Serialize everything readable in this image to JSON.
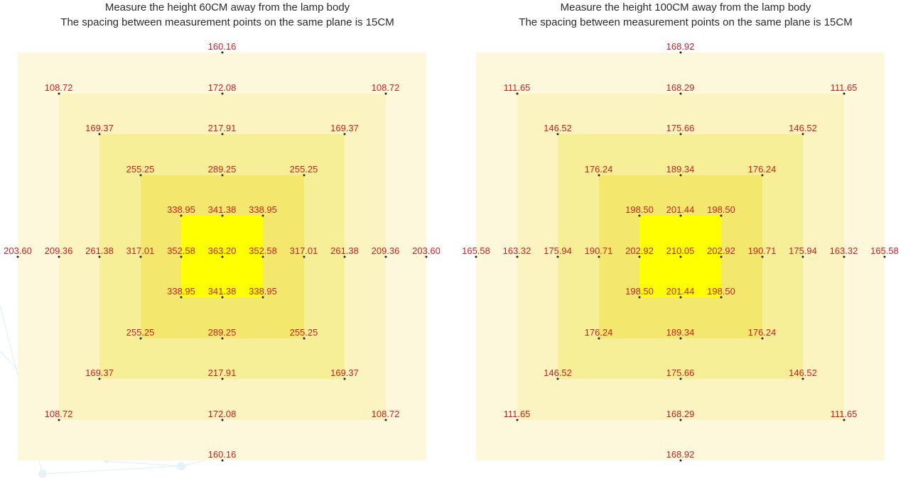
{
  "colors": {
    "rings": [
      "#fdf8dc",
      "#fbf3c0",
      "#f7ee98",
      "#f3e86d",
      "#ffff00"
    ],
    "value_text": "#cc1f1f",
    "title_text": "#2b2b2b"
  },
  "panels": [
    {
      "title_line1": "Measure the height 60CM away from the lamp body",
      "title_line2": "The spacing between measurement points on the same plane is 15CM",
      "grid": [
        [
          "",
          "",
          "",
          "",
          "",
          "160.16",
          "",
          "",
          "",
          "",
          ""
        ],
        [
          "",
          "108.72",
          "",
          "",
          "",
          "172.08",
          "",
          "",
          "",
          "108.72",
          ""
        ],
        [
          "",
          "",
          "169.37",
          "",
          "",
          "217.91",
          "",
          "",
          "169.37",
          "",
          ""
        ],
        [
          "",
          "",
          "",
          "255.25",
          "",
          "289.25",
          "",
          "255.25",
          "",
          "",
          ""
        ],
        [
          "",
          "",
          "",
          "",
          "338.95",
          "341.38",
          "338.95",
          "",
          "",
          "",
          ""
        ],
        [
          "203.60",
          "209.36",
          "261.38",
          "317.01",
          "352.58",
          "363.20",
          "352.58",
          "317.01",
          "261.38",
          "209.36",
          "203.60"
        ],
        [
          "",
          "",
          "",
          "",
          "338.95",
          "341.38",
          "338.95",
          "",
          "",
          "",
          ""
        ],
        [
          "",
          "",
          "",
          "255.25",
          "",
          "289.25",
          "",
          "255.25",
          "",
          "",
          ""
        ],
        [
          "",
          "",
          "169.37",
          "",
          "",
          "217.91",
          "",
          "",
          "169.37",
          "",
          ""
        ],
        [
          "",
          "108.72",
          "",
          "",
          "",
          "172.08",
          "",
          "",
          "",
          "108.72",
          ""
        ],
        [
          "",
          "",
          "",
          "",
          "",
          "160.16",
          "",
          "",
          "",
          "",
          ""
        ]
      ]
    },
    {
      "title_line1": "Measure the height 100CM away from the lamp body",
      "title_line2": "The spacing between measurement points on the same plane is 15CM",
      "grid": [
        [
          "",
          "",
          "",
          "",
          "",
          "168.92",
          "",
          "",
          "",
          "",
          ""
        ],
        [
          "",
          "111.65",
          "",
          "",
          "",
          "168.29",
          "",
          "",
          "",
          "111.65",
          ""
        ],
        [
          "",
          "",
          "146.52",
          "",
          "",
          "175.66",
          "",
          "",
          "146.52",
          "",
          ""
        ],
        [
          "",
          "",
          "",
          "176.24",
          "",
          "189.34",
          "",
          "176.24",
          "",
          "",
          ""
        ],
        [
          "",
          "",
          "",
          "",
          "198.50",
          "201.44",
          "198.50",
          "",
          "",
          "",
          ""
        ],
        [
          "165.58",
          "163.32",
          "175.94",
          "190.71",
          "202.92",
          "210.05",
          "202.92",
          "190.71",
          "175.94",
          "163.32",
          "165.58"
        ],
        [
          "",
          "",
          "",
          "",
          "198.50",
          "201.44",
          "198.50",
          "",
          "",
          "",
          ""
        ],
        [
          "",
          "",
          "",
          "176.24",
          "",
          "189.34",
          "",
          "176.24",
          "",
          "",
          ""
        ],
        [
          "",
          "",
          "146.52",
          "",
          "",
          "175.66",
          "",
          "",
          "146.52",
          "",
          ""
        ],
        [
          "",
          "111.65",
          "",
          "",
          "",
          "168.29",
          "",
          "",
          "",
          "111.65",
          ""
        ],
        [
          "",
          "",
          "",
          "",
          "",
          "168.92",
          "",
          "",
          "",
          "",
          ""
        ]
      ]
    }
  ]
}
